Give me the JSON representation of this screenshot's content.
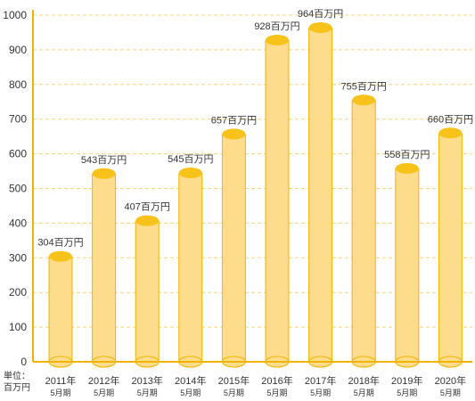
{
  "chart_data": {
    "type": "bar",
    "categories": [
      "2011年",
      "2012年",
      "2013年",
      "2014年",
      "2015年",
      "2016年",
      "2017年",
      "2018年",
      "2019年",
      "2020年"
    ],
    "category_sublabel": "5月期",
    "values": [
      304,
      543,
      407,
      545,
      657,
      928,
      964,
      755,
      558,
      660
    ],
    "value_labels": [
      "304百万円",
      "543百万円",
      "407百万円",
      "545百万円",
      "657百万円",
      "928百万円",
      "964百万円",
      "755百万円",
      "558百万円",
      "660百万円"
    ],
    "ylim": [
      0,
      1000
    ],
    "yticks": [
      0,
      100,
      200,
      300,
      400,
      500,
      600,
      700,
      800,
      900,
      1000
    ],
    "grid": true,
    "unit_label_line1": "単位：",
    "unit_label_line2": "百万円",
    "colors": {
      "bar_body": "#fddc8c",
      "bar_top": "#f7c21a",
      "bar_stroke": "#f0b400",
      "axis": "#f0b400",
      "grid": "#f5d57a",
      "text": "#333333"
    }
  }
}
